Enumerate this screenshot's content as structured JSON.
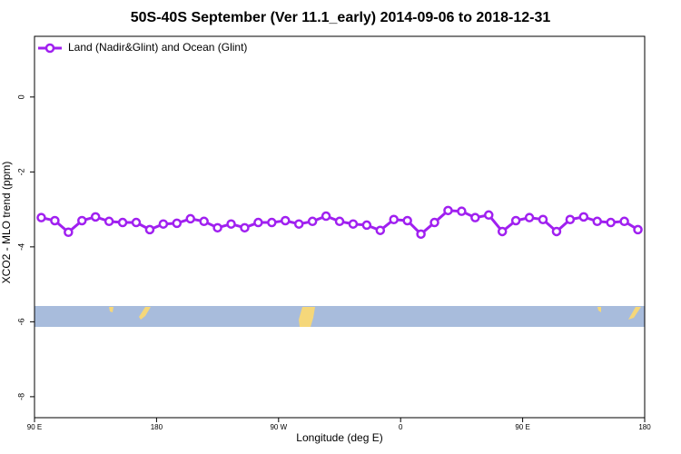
{
  "chart_data": {
    "type": "line",
    "title": "50S-40S September (Ver 11.1_early)   2014-09-06 to 2018-12-31",
    "xlabel": "Longitude (deg E)",
    "ylabel": "XCO2 - MLO trend (ppm)",
    "x": [
      95,
      105,
      115,
      125,
      135,
      145,
      155,
      165,
      175,
      185,
      195,
      205,
      215,
      225,
      235,
      245,
      255,
      265,
      275,
      285,
      295,
      305,
      315,
      325,
      335,
      345,
      355,
      365,
      375,
      385,
      395,
      405,
      415,
      425,
      435,
      445,
      455,
      465,
      475,
      485,
      495,
      505,
      515,
      525,
      535
    ],
    "series": [
      {
        "name": "Land (Nadir&Glint) and Ocean (Glint)",
        "color": "#a020f0",
        "values": [
          -3.22,
          -3.3,
          -3.61,
          -3.3,
          -3.2,
          -3.32,
          -3.35,
          -3.35,
          -3.54,
          -3.39,
          -3.37,
          -3.25,
          -3.32,
          -3.49,
          -3.39,
          -3.49,
          -3.35,
          -3.35,
          -3.3,
          -3.39,
          -3.32,
          -3.18,
          -3.32,
          -3.39,
          -3.42,
          -3.56,
          -3.27,
          -3.3,
          -3.66,
          -3.35,
          -3.03,
          -3.05,
          -3.22,
          -3.15,
          -3.59,
          -3.3,
          -3.22,
          -3.27,
          -3.59,
          -3.27,
          -3.2,
          -3.32,
          -3.35,
          -3.32,
          -3.54
        ]
      }
    ],
    "xlim": [
      90,
      540
    ],
    "xticks": [
      {
        "value": 90,
        "label": "90 E"
      },
      180,
      {
        "value": 270,
        "label": "90 W"
      },
      {
        "value": 360,
        "label": "0"
      },
      {
        "value": 450,
        "label": "90 E"
      },
      {
        "value": 540,
        "label": "180"
      }
    ],
    "ylim": [
      -8.56,
      1.62
    ],
    "yticks": [
      -8,
      -6,
      -4,
      -2,
      0
    ],
    "legend": "top-left"
  }
}
